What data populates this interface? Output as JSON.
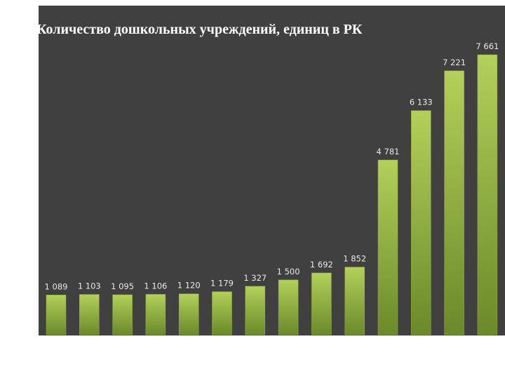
{
  "chart_data": {
    "type": "bar",
    "title": "Количество дошкольных учреждений, единиц в РК",
    "values": [
      1089,
      1103,
      1095,
      1106,
      1120,
      1179,
      1327,
      1500,
      1692,
      1852,
      4781,
      6133,
      7221,
      7661
    ],
    "value_labels": [
      "1 089",
      "1 103",
      "1 095",
      "1 106",
      "1 120",
      "1 179",
      "1 327",
      "1 500",
      "1 692",
      "1 852",
      "4 781",
      "6 133",
      "7 221",
      "7 661"
    ],
    "color": "#8db33a"
  }
}
